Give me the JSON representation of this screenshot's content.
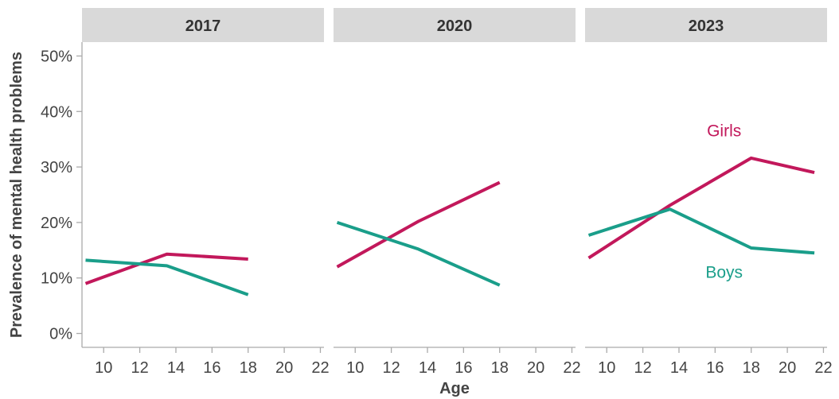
{
  "chart_data": {
    "type": "line",
    "xlabel": "Age",
    "ylabel": "Prevalence of mental health problems",
    "xlim": [
      8.8,
      22.2
    ],
    "ylim": [
      -2.5,
      52.5
    ],
    "x_ticks": [
      10,
      12,
      14,
      16,
      18,
      20,
      22
    ],
    "x_tick_labels": [
      "10",
      "12",
      "14",
      "16",
      "18",
      "20",
      "22"
    ],
    "y_ticks": [
      0,
      10,
      20,
      30,
      40,
      50
    ],
    "y_tick_labels": [
      "0%",
      "10%",
      "20%",
      "30%",
      "40%",
      "50%"
    ],
    "grid": false,
    "legend": "direct labels in 2023 panel",
    "colors": {
      "Girls": "#c2185b",
      "Boys": "#1a9e8a",
      "strip": "#d9d9d9"
    },
    "panels": [
      {
        "title": "2017",
        "series": [
          {
            "name": "Girls",
            "x": [
              9,
              13.5,
              18
            ],
            "y": [
              9.0,
              14.3,
              13.4
            ]
          },
          {
            "name": "Boys",
            "x": [
              9,
              13.5,
              18
            ],
            "y": [
              13.2,
              12.2,
              7.0
            ]
          }
        ]
      },
      {
        "title": "2020",
        "series": [
          {
            "name": "Girls",
            "x": [
              9,
              13.5,
              18
            ],
            "y": [
              12.0,
              20.2,
              27.2
            ]
          },
          {
            "name": "Boys",
            "x": [
              9,
              13.5,
              18
            ],
            "y": [
              20.0,
              15.2,
              8.7
            ]
          }
        ]
      },
      {
        "title": "2023",
        "series": [
          {
            "name": "Girls",
            "x": [
              9,
              13.5,
              18,
              21.5
            ],
            "y": [
              13.6,
              23.1,
              31.6,
              29.0
            ]
          },
          {
            "name": "Boys",
            "x": [
              9,
              13.5,
              18,
              21.5
            ],
            "y": [
              17.7,
              22.4,
              15.4,
              14.5
            ]
          }
        ]
      }
    ],
    "annotations": [
      {
        "panel": 2,
        "text": "Girls",
        "series": "Girls",
        "x": 16.5,
        "y": 36.5
      },
      {
        "panel": 2,
        "text": "Boys",
        "series": "Boys",
        "x": 16.5,
        "y": 11.0
      }
    ]
  }
}
